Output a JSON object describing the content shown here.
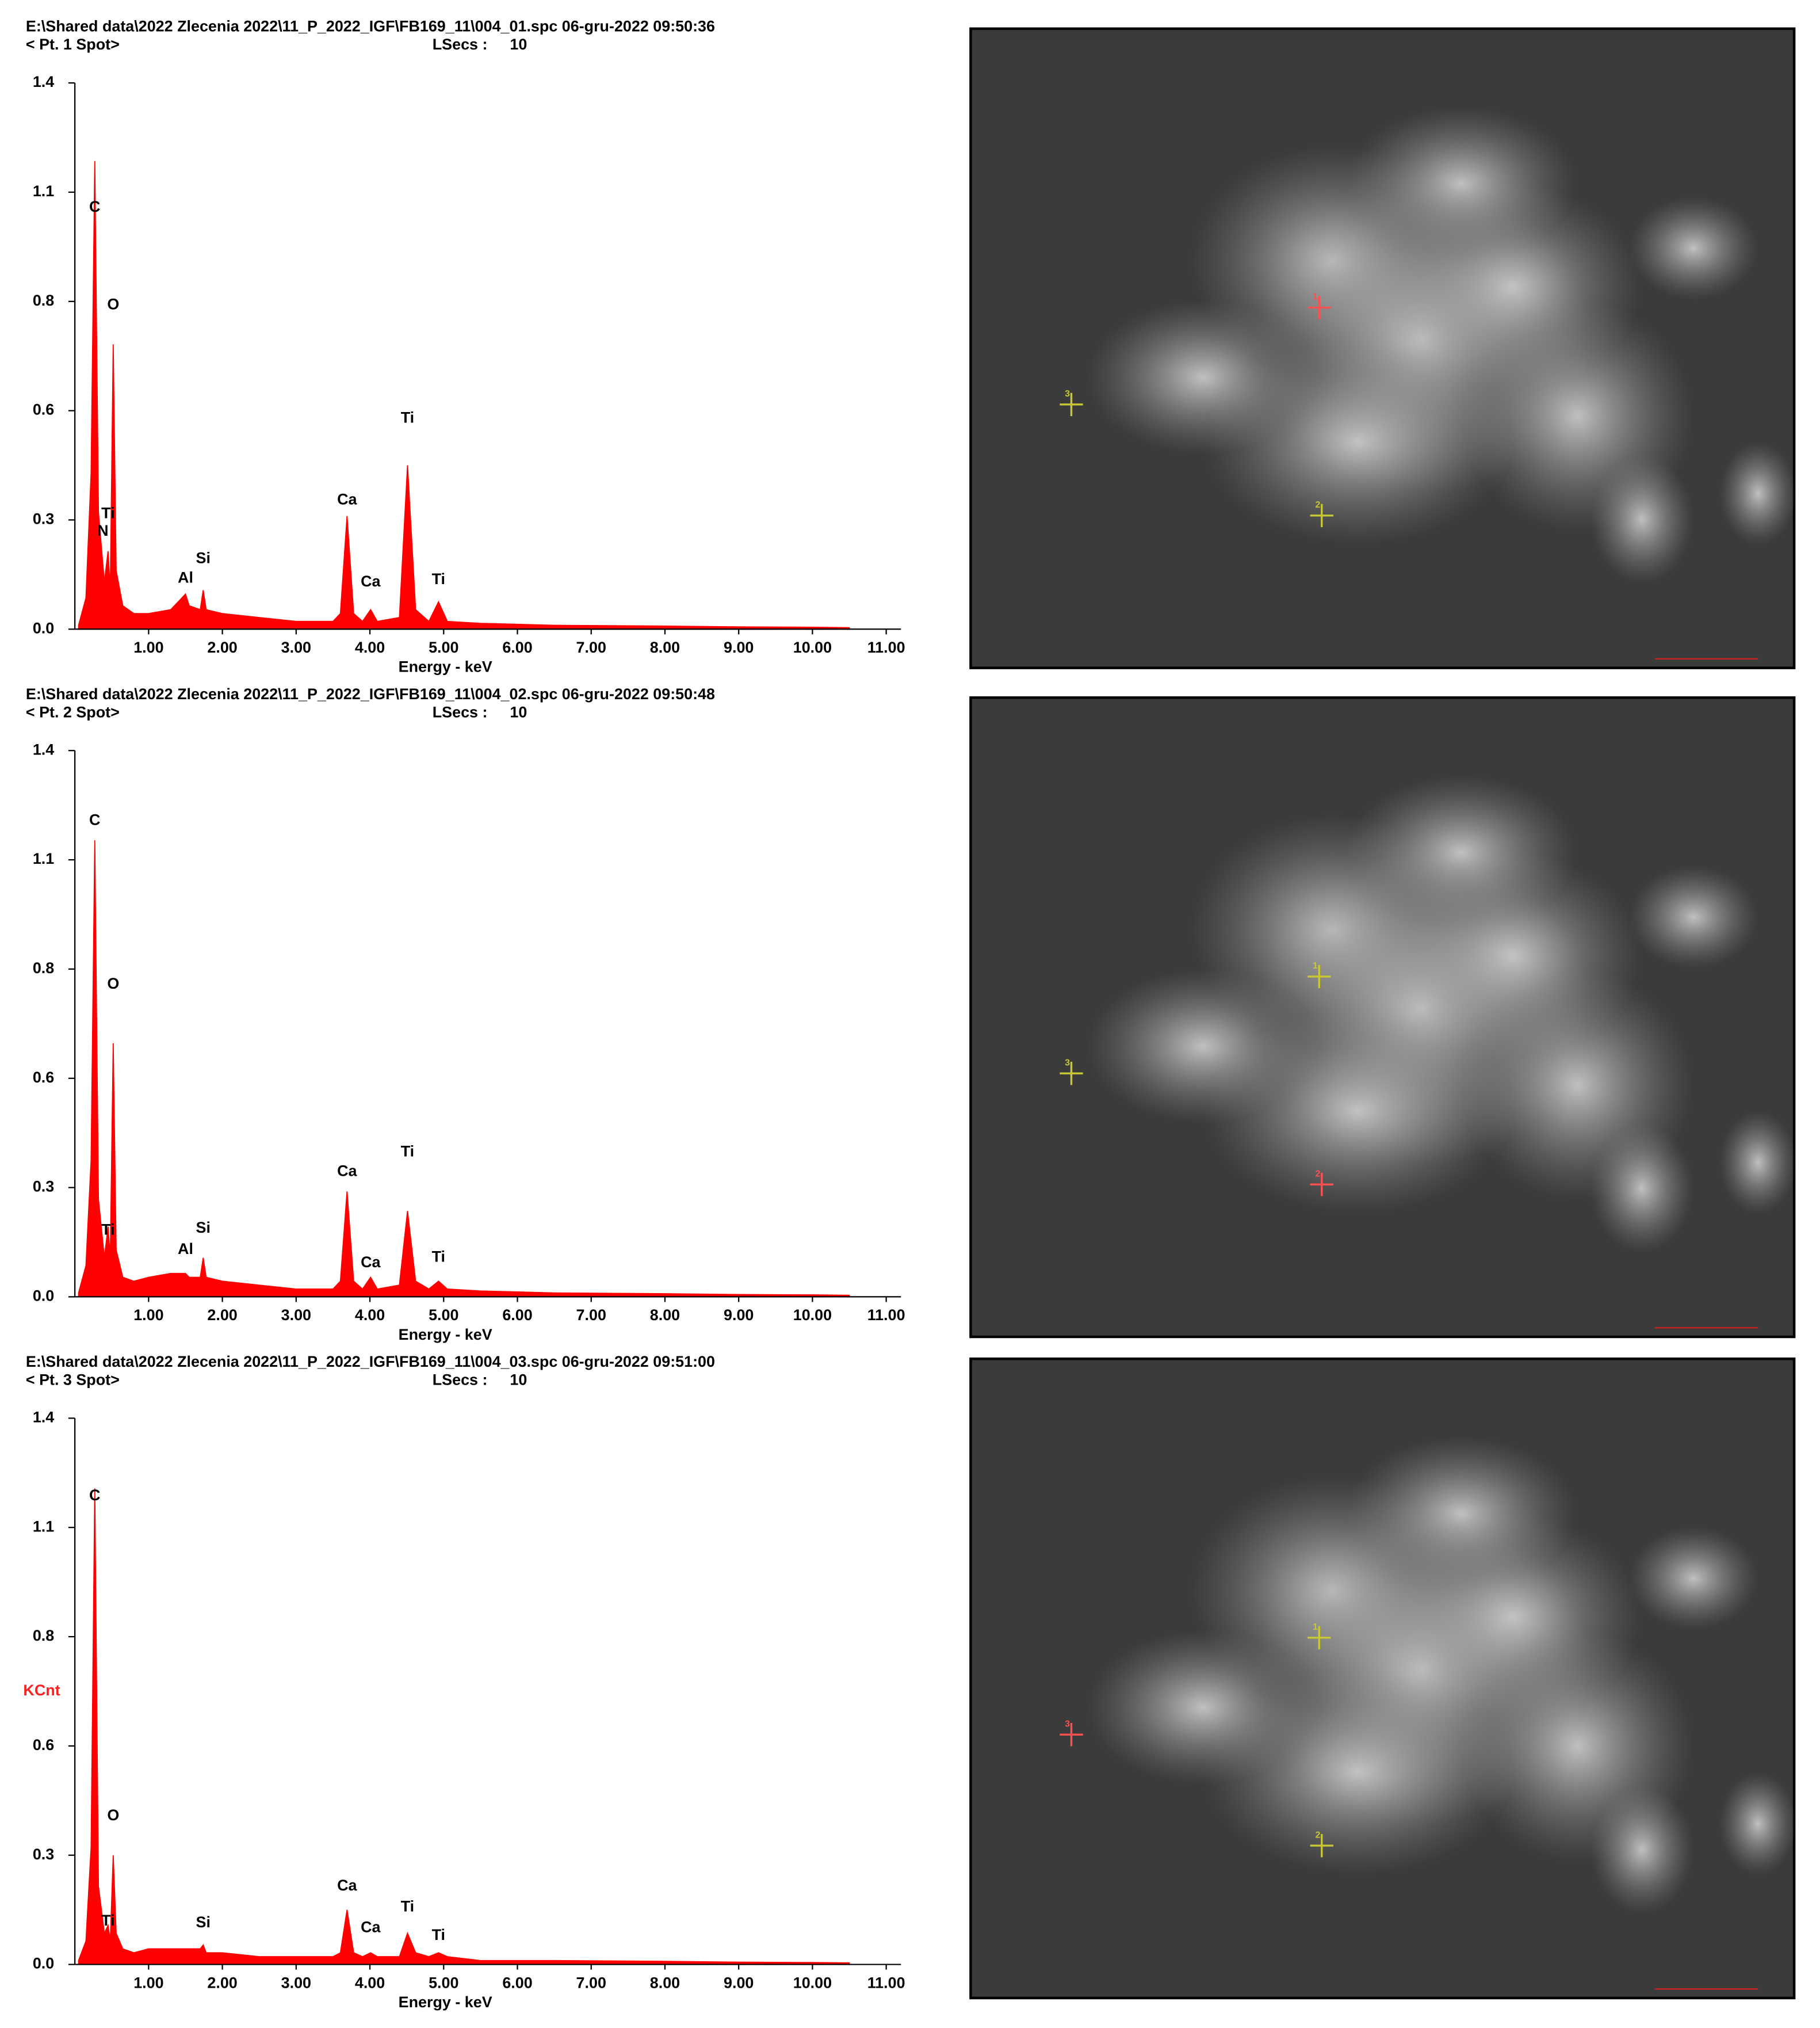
{
  "chart_data": [
    {
      "type": "area",
      "title": "E:\\Shared data\\2022 Zlecenia 2022\\11_P_2022_IGF\\FB169_11\\004_01.spc  06-gru-2022 09:50:36",
      "subtitle": "< Pt.  1 Spot>",
      "lsecs_label": "LSecs :",
      "lsecs": 10,
      "color": "#ff0000",
      "x": [
        0.05,
        0.15,
        0.22,
        0.27,
        0.32,
        0.4,
        0.45,
        0.48,
        0.52,
        0.56,
        0.65,
        0.8,
        1.0,
        1.3,
        1.45,
        1.5,
        1.55,
        1.7,
        1.74,
        1.78,
        2.0,
        2.5,
        3.0,
        3.5,
        3.6,
        3.69,
        3.78,
        3.9,
        4.01,
        4.1,
        4.4,
        4.51,
        4.62,
        4.8,
        4.93,
        5.05,
        5.5,
        6.5,
        8,
        9,
        10,
        10.5
      ],
      "values": [
        0.01,
        0.08,
        0.4,
        1.2,
        0.3,
        0.12,
        0.2,
        0.1,
        0.73,
        0.15,
        0.06,
        0.04,
        0.04,
        0.05,
        0.08,
        0.09,
        0.06,
        0.05,
        0.1,
        0.05,
        0.04,
        0.03,
        0.02,
        0.02,
        0.04,
        0.29,
        0.04,
        0.02,
        0.05,
        0.02,
        0.03,
        0.42,
        0.05,
        0.02,
        0.07,
        0.02,
        0.015,
        0.01,
        0.008,
        0.006,
        0.005,
        0.004
      ],
      "xlim": [
        0,
        11.2
      ],
      "xticks": [
        {
          "value": 1,
          "label": "1.00"
        },
        {
          "value": 2,
          "label": "2.00"
        },
        {
          "value": 3,
          "label": "3.00"
        },
        {
          "value": 4,
          "label": "4.00"
        },
        {
          "value": 5,
          "label": "5.00"
        },
        {
          "value": 6,
          "label": "6.00"
        },
        {
          "value": 7,
          "label": "7.00"
        },
        {
          "value": 8,
          "label": "8.00"
        },
        {
          "value": 9,
          "label": "9.00"
        },
        {
          "value": 10,
          "label": "10.00"
        },
        {
          "value": 11,
          "label": "11.00"
        }
      ],
      "ylim": [
        0,
        1.4
      ],
      "yticks": [
        {
          "value": 0,
          "label": "0.0"
        },
        {
          "value": 0.28,
          "label": "0.3"
        },
        {
          "value": 0.56,
          "label": "0.6"
        },
        {
          "value": 0.84,
          "label": "0.8"
        },
        {
          "value": 1.12,
          "label": "1.1"
        },
        1.4
      ],
      "xlabel": "Energy - keV",
      "annotations": [
        {
          "text": "C",
          "x": 0.27,
          "y": 1.08
        },
        {
          "text": "O",
          "x": 0.52,
          "y": 0.83
        },
        {
          "text": "Ti",
          "x": 0.45,
          "y": 0.295
        },
        {
          "text": "N",
          "x": 0.38,
          "y": 0.25
        },
        {
          "text": "Al",
          "x": 1.5,
          "y": 0.13
        },
        {
          "text": "Si",
          "x": 1.74,
          "y": 0.18
        },
        {
          "text": "Ca",
          "x": 3.69,
          "y": 0.33
        },
        {
          "text": "Ca",
          "x": 4.01,
          "y": 0.12
        },
        {
          "text": "Ti",
          "x": 4.51,
          "y": 0.54
        },
        {
          "text": "Ti",
          "x": 4.93,
          "y": 0.126
        }
      ]
    },
    {
      "type": "area",
      "title": "E:\\Shared data\\2022 Zlecenia 2022\\11_P_2022_IGF\\FB169_11\\004_02.spc  06-gru-2022 09:50:48",
      "subtitle": "< Pt.  2 Spot>",
      "lsecs_label": "LSecs :",
      "lsecs": 10,
      "color": "#ff0000",
      "x": [
        0.05,
        0.15,
        0.22,
        0.27,
        0.32,
        0.4,
        0.45,
        0.48,
        0.52,
        0.56,
        0.65,
        0.8,
        1.0,
        1.3,
        1.45,
        1.5,
        1.55,
        1.7,
        1.74,
        1.78,
        2.0,
        2.5,
        3.0,
        3.5,
        3.6,
        3.69,
        3.78,
        3.9,
        4.01,
        4.1,
        4.4,
        4.51,
        4.62,
        4.8,
        4.93,
        5.05,
        5.5,
        6.5,
        8,
        9,
        10,
        10.5
      ],
      "values": [
        0.01,
        0.08,
        0.35,
        1.17,
        0.25,
        0.1,
        0.18,
        0.1,
        0.65,
        0.12,
        0.05,
        0.04,
        0.05,
        0.06,
        0.06,
        0.06,
        0.05,
        0.05,
        0.1,
        0.05,
        0.04,
        0.03,
        0.02,
        0.02,
        0.04,
        0.27,
        0.04,
        0.02,
        0.05,
        0.02,
        0.03,
        0.22,
        0.04,
        0.02,
        0.04,
        0.02,
        0.015,
        0.01,
        0.008,
        0.006,
        0.005,
        0.004
      ],
      "xlim": [
        0,
        11.2
      ],
      "xticks": [
        {
          "value": 1,
          "label": "1.00"
        },
        {
          "value": 2,
          "label": "2.00"
        },
        {
          "value": 3,
          "label": "3.00"
        },
        {
          "value": 4,
          "label": "4.00"
        },
        {
          "value": 5,
          "label": "5.00"
        },
        {
          "value": 6,
          "label": "6.00"
        },
        {
          "value": 7,
          "label": "7.00"
        },
        {
          "value": 8,
          "label": "8.00"
        },
        {
          "value": 9,
          "label": "9.00"
        },
        {
          "value": 10,
          "label": "10.00"
        },
        {
          "value": 11,
          "label": "11.00"
        }
      ],
      "ylim": [
        0,
        1.4
      ],
      "yticks": [
        {
          "value": 0,
          "label": "0.0"
        },
        {
          "value": 0.28,
          "label": "0.3"
        },
        {
          "value": 0.56,
          "label": "0.6"
        },
        {
          "value": 0.84,
          "label": "0.8"
        },
        {
          "value": 1.12,
          "label": "1.1"
        },
        1.4
      ],
      "xlabel": "Energy - keV",
      "annotations": [
        {
          "text": "C",
          "x": 0.27,
          "y": 1.22
        },
        {
          "text": "O",
          "x": 0.52,
          "y": 0.8
        },
        {
          "text": "Ti",
          "x": 0.45,
          "y": 0.17
        },
        {
          "text": "Al",
          "x": 1.5,
          "y": 0.12
        },
        {
          "text": "Si",
          "x": 1.74,
          "y": 0.175
        },
        {
          "text": "Ca",
          "x": 3.69,
          "y": 0.32
        },
        {
          "text": "Ca",
          "x": 4.01,
          "y": 0.086
        },
        {
          "text": "Ti",
          "x": 4.51,
          "y": 0.37
        },
        {
          "text": "Ti",
          "x": 4.93,
          "y": 0.1
        }
      ]
    },
    {
      "type": "area",
      "title": "E:\\Shared data\\2022 Zlecenia 2022\\11_P_2022_IGF\\FB169_11\\004_03.spc  06-gru-2022 09:51:00",
      "subtitle": "< Pt.  3 Spot>",
      "lsecs_label": "LSecs :",
      "lsecs": 10,
      "color": "#ff0000",
      "x": [
        0.05,
        0.15,
        0.22,
        0.27,
        0.32,
        0.4,
        0.45,
        0.48,
        0.52,
        0.56,
        0.65,
        0.8,
        1.0,
        1.3,
        1.45,
        1.5,
        1.55,
        1.7,
        1.74,
        1.78,
        2.0,
        2.5,
        3.0,
        3.5,
        3.6,
        3.69,
        3.78,
        3.9,
        4.01,
        4.1,
        4.4,
        4.51,
        4.62,
        4.8,
        4.93,
        5.05,
        5.5,
        6.5,
        8,
        9,
        10,
        10.5
      ],
      "values": [
        0.01,
        0.06,
        0.3,
        1.22,
        0.2,
        0.08,
        0.1,
        0.06,
        0.28,
        0.08,
        0.04,
        0.03,
        0.04,
        0.04,
        0.04,
        0.04,
        0.04,
        0.04,
        0.05,
        0.03,
        0.03,
        0.02,
        0.02,
        0.02,
        0.03,
        0.14,
        0.03,
        0.02,
        0.03,
        0.02,
        0.02,
        0.08,
        0.03,
        0.02,
        0.03,
        0.02,
        0.01,
        0.01,
        0.008,
        0.006,
        0.005,
        0.004
      ],
      "xlim": [
        0,
        11.2
      ],
      "xticks": [
        {
          "value": 1,
          "label": "1.00"
        },
        {
          "value": 2,
          "label": "2.00"
        },
        {
          "value": 3,
          "label": "3.00"
        },
        {
          "value": 4,
          "label": "4.00"
        },
        {
          "value": 5,
          "label": "5.00"
        },
        {
          "value": 6,
          "label": "6.00"
        },
        {
          "value": 7,
          "label": "7.00"
        },
        {
          "value": 8,
          "label": "8.00"
        },
        {
          "value": 9,
          "label": "9.00"
        },
        {
          "value": 10,
          "label": "10.00"
        },
        {
          "value": 11,
          "label": "11.00"
        }
      ],
      "ylim": [
        0,
        1.4
      ],
      "yticks": [
        {
          "value": 0,
          "label": "0.0"
        },
        {
          "value": 0.28,
          "label": "0.3"
        },
        {
          "value": 0.56,
          "label": "0.6"
        },
        {
          "value": 0.84,
          "label": "0.8"
        },
        {
          "value": 1.12,
          "label": "1.1"
        },
        1.4
      ],
      "xlabel": "Energy - keV",
      "ylabel": "KCnt",
      "annotations": [
        {
          "text": "C",
          "x": 0.27,
          "y": 1.2
        },
        {
          "text": "O",
          "x": 0.52,
          "y": 0.38
        },
        {
          "text": "Ti",
          "x": 0.45,
          "y": 0.11
        },
        {
          "text": "Si",
          "x": 1.74,
          "y": 0.106
        },
        {
          "text": "Ca",
          "x": 3.69,
          "y": 0.2
        },
        {
          "text": "Ca",
          "x": 4.01,
          "y": 0.093
        },
        {
          "text": "Ti",
          "x": 4.51,
          "y": 0.146
        },
        {
          "text": "Ti",
          "x": 4.93,
          "y": 0.073
        }
      ]
    }
  ],
  "images": [
    {
      "markers": [
        {
          "label": "1",
          "color": "#ff5050"
        },
        {
          "label": "3",
          "color": "#c8c832"
        },
        {
          "label": "2",
          "color": "#c8c832"
        }
      ]
    },
    {
      "markers": [
        {
          "label": "1",
          "color": "#c8c832"
        },
        {
          "label": "3",
          "color": "#c8c832"
        },
        {
          "label": "2",
          "color": "#ff5050"
        }
      ]
    },
    {
      "markers": [
        {
          "label": "1",
          "color": "#c8c832"
        },
        {
          "label": "3",
          "color": "#ff5050"
        },
        {
          "label": "2",
          "color": "#c8c832"
        }
      ]
    }
  ]
}
